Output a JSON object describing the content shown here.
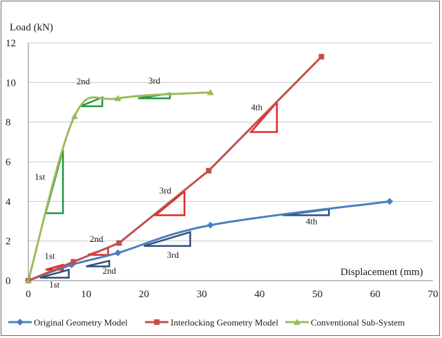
{
  "chart_data": {
    "type": "line",
    "ylabel": "Load (kN)",
    "xlabel": "Displacement (mm)",
    "xlim": [
      0,
      70
    ],
    "ylim": [
      0,
      12
    ],
    "xticks": [
      0,
      10,
      20,
      30,
      40,
      50,
      60,
      70
    ],
    "yticks": [
      0,
      2,
      4,
      6,
      8,
      10,
      12
    ],
    "grid": "horizontal",
    "legend_position": "bottom",
    "series": [
      {
        "name": "Original Geometry Model",
        "color": "#4a7fc1",
        "marker": "diamond",
        "x": [
          0,
          7.5,
          15.5,
          31.5,
          62.5
        ],
        "y": [
          0,
          0.8,
          1.4,
          2.8,
          4.0
        ]
      },
      {
        "name": "Interlocking Geometry Model",
        "color": "#c0504d",
        "marker": "square",
        "x": [
          0,
          7.8,
          15.7,
          31.2,
          50.7
        ],
        "y": [
          0,
          0.95,
          1.9,
          5.55,
          11.3
        ]
      },
      {
        "name": "Conventional Sub-System",
        "color": "#9bbb59",
        "marker": "triangle",
        "x": [
          0,
          8,
          15.5,
          31.5
        ],
        "y": [
          0,
          8.3,
          9.2,
          9.5
        ]
      }
    ],
    "annotations": [
      {
        "text": "1st",
        "color": "#1f9a3c",
        "x1": 3,
        "x2": 6,
        "y1": 3.4,
        "y2": 6.6,
        "lx": 2,
        "ly": 5.1
      },
      {
        "text": "2nd",
        "color": "#1f9a3c",
        "x1": 9,
        "x2": 12.8,
        "y1": 8.8,
        "y2": 9.25,
        "lx": 9.5,
        "ly": 9.9
      },
      {
        "text": "3rd",
        "color": "#1f9a3c",
        "x1": 19,
        "x2": 24.5,
        "y1": 9.2,
        "y2": 9.45,
        "lx": 21.8,
        "ly": 9.95
      },
      {
        "text": "1st",
        "color": "#e32424",
        "x1": 3,
        "x2": 6,
        "y1": 0.55,
        "y2": 0.8,
        "lx": 3.7,
        "ly": 1.1
      },
      {
        "text": "2nd",
        "color": "#e32424",
        "x1": 10.3,
        "x2": 13.8,
        "y1": 1.3,
        "y2": 1.65,
        "lx": 11.8,
        "ly": 1.95
      },
      {
        "text": "3rd",
        "color": "#e32424",
        "x1": 22,
        "x2": 27,
        "y1": 3.3,
        "y2": 4.5,
        "lx": 23.7,
        "ly": 4.4
      },
      {
        "text": "4th",
        "color": "#e32424",
        "x1": 38.5,
        "x2": 43,
        "y1": 7.5,
        "y2": 9.0,
        "lx": 39.5,
        "ly": 8.6
      },
      {
        "text": "1st",
        "color": "#2e4d7a",
        "x1": 2,
        "x2": 7,
        "y1": 0.15,
        "y2": 0.55,
        "lx": 4.5,
        "ly": -0.35
      },
      {
        "text": "2nd",
        "color": "#2e4d7a",
        "x1": 10,
        "x2": 14,
        "y1": 0.72,
        "y2": 1.0,
        "lx": 14,
        "ly": 0.35
      },
      {
        "text": "3rd",
        "color": "#2e4d7a",
        "x1": 20,
        "x2": 28,
        "y1": 1.75,
        "y2": 2.45,
        "lx": 25,
        "ly": 1.15
      },
      {
        "text": "4th",
        "color": "#2e4d7a",
        "x1": 44,
        "x2": 52,
        "y1": 3.3,
        "y2": 3.6,
        "lx": 49,
        "ly": 2.85
      }
    ]
  }
}
